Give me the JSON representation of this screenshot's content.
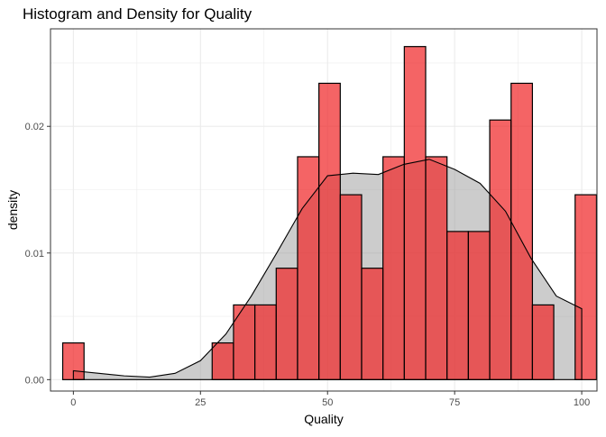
{
  "chart_data": {
    "type": "bar",
    "title": "Histogram and Density for Quality",
    "xlabel": "Quality",
    "ylabel": "density",
    "xlim": [
      -4.5,
      103
    ],
    "ylim": [
      -0.0009,
      0.0277
    ],
    "x_ticks": [
      0,
      25,
      50,
      75,
      100
    ],
    "y_ticks": [
      0.0,
      0.01,
      0.02
    ],
    "y_tick_labels": [
      "0.00",
      "0.01",
      "0.02"
    ],
    "grid": true,
    "legend": "none",
    "colors": {
      "bar_fill": "#f0282a",
      "bar_stroke": "#000000",
      "density_fill": "#999999",
      "density_stroke": "#000000",
      "grid": "#ebebeb",
      "panel_border": "#333333",
      "tick_label": "#4d4d4d"
    },
    "histogram": {
      "name": "",
      "bin_width": 4.2,
      "bins": [
        {
          "x0": -2.1,
          "x1": 2.1,
          "density": 0.0029
        },
        {
          "x0": 27.3,
          "x1": 31.5,
          "density": 0.0029
        },
        {
          "x0": 31.5,
          "x1": 35.7,
          "density": 0.0059
        },
        {
          "x0": 35.7,
          "x1": 39.9,
          "density": 0.0059
        },
        {
          "x0": 39.9,
          "x1": 44.1,
          "density": 0.0088
        },
        {
          "x0": 44.1,
          "x1": 48.3,
          "density": 0.0176
        },
        {
          "x0": 48.3,
          "x1": 52.5,
          "density": 0.0234
        },
        {
          "x0": 52.5,
          "x1": 56.7,
          "density": 0.0146
        },
        {
          "x0": 56.7,
          "x1": 60.9,
          "density": 0.0088
        },
        {
          "x0": 60.9,
          "x1": 65.1,
          "density": 0.0176
        },
        {
          "x0": 65.1,
          "x1": 69.3,
          "density": 0.0263
        },
        {
          "x0": 69.3,
          "x1": 73.5,
          "density": 0.0176
        },
        {
          "x0": 73.5,
          "x1": 77.7,
          "density": 0.0117
        },
        {
          "x0": 77.7,
          "x1": 81.9,
          "density": 0.0117
        },
        {
          "x0": 81.9,
          "x1": 86.1,
          "density": 0.0205
        },
        {
          "x0": 86.1,
          "x1": 90.3,
          "density": 0.0234
        },
        {
          "x0": 90.3,
          "x1": 94.5,
          "density": 0.0059
        },
        {
          "x0": 98.7,
          "x1": 102.9,
          "density": 0.0146
        }
      ]
    },
    "density": {
      "name": "",
      "x": [
        0,
        5,
        10,
        15,
        20,
        25,
        30,
        35,
        40,
        45,
        50,
        55,
        60,
        65,
        70,
        75,
        80,
        85,
        90,
        95,
        100
      ],
      "y": [
        0.0007,
        0.0005,
        0.0003,
        0.0002,
        0.0005,
        0.0015,
        0.0036,
        0.0066,
        0.01,
        0.0135,
        0.0161,
        0.0163,
        0.0162,
        0.017,
        0.0174,
        0.0166,
        0.0155,
        0.0133,
        0.0096,
        0.0066,
        0.0056
      ]
    }
  }
}
